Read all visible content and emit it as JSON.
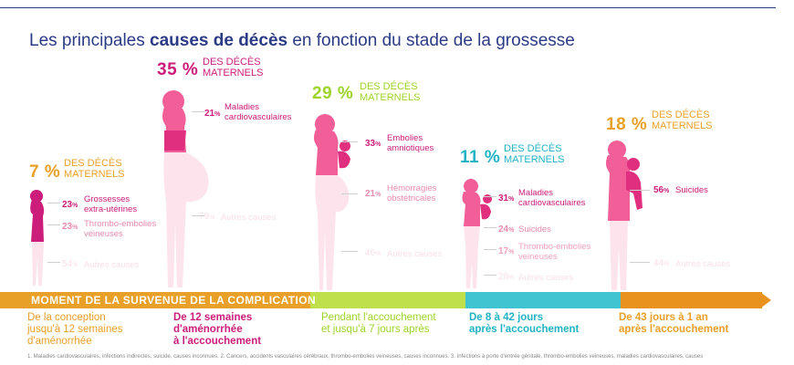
{
  "title": {
    "pre": "Les principales ",
    "bold": "causes de décès",
    "post": " en fonction du stade de la grossesse"
  },
  "colors": {
    "magenta": "#cc1d7a",
    "orange": "#e9a028",
    "cyan": "#21b3c3",
    "lime": "#9ed32a",
    "navy": "#2c3b86",
    "pink": "#f25e97"
  },
  "stages": [
    {
      "pct": "7 %",
      "pct_label": "DES DÉCÈS\nMATERNELS",
      "causes": [
        {
          "v": "23",
          "u": "%",
          "l": "Grossesses\nextra-utérines"
        },
        {
          "v": "23",
          "u": "%",
          "l": "Thrombo-embolies\nveineuses"
        },
        {
          "v": "54",
          "u": "%",
          "l": "Autres causes"
        }
      ]
    },
    {
      "pct": "35 %",
      "pct_label": "DES DÉCÈS\nMATERNELS",
      "causes": [
        {
          "v": "21",
          "u": "%",
          "l": "Maladies\ncardiovasculaires"
        },
        {
          "v": "79",
          "u": "%",
          "l": "Autres causes"
        }
      ]
    },
    {
      "pct": "29 %",
      "pct_label": "DES DÉCÈS\nMATERNELS",
      "causes": [
        {
          "v": "33",
          "u": "%",
          "l": "Embolies\namniotiques"
        },
        {
          "v": "21",
          "u": "%",
          "l": "Hémorragies\nobstétricales"
        },
        {
          "v": "46",
          "u": "%",
          "l": "Autres causes"
        }
      ]
    },
    {
      "pct": "11 %",
      "pct_label": "DES DÉCÈS\nMATERNELS",
      "causes": [
        {
          "v": "31",
          "u": "%",
          "l": "Maladies\ncardiovasculaires"
        },
        {
          "v": "24",
          "u": "%",
          "l": "Suicides"
        },
        {
          "v": "17",
          "u": "%",
          "l": "Thrombo-embolies\nveineuses"
        },
        {
          "v": "28",
          "u": "%",
          "l": "Autres causes"
        }
      ]
    },
    {
      "pct": "18 %",
      "pct_label": "DES DÉCÈS\nMATERNELS",
      "causes": [
        {
          "v": "56",
          "u": "%",
          "l": "Suicides"
        },
        {
          "v": "44",
          "u": "%",
          "l": "Autres causes"
        }
      ]
    }
  ],
  "timeline": {
    "label": "MOMENT DE LA SURVENUE DE LA COMPLICATION"
  },
  "periods": [
    "De la conception\njusqu'à 12 semaines\nd'aménorrhée",
    "De 12 semaines\nd'aménorrhée\nà l'accouchement",
    "Pendant l'accouchement\net jusqu'à 7 jours après",
    "De 8 à 42 jours\naprès l'accouchement",
    "De 43 jours à 1 an\naprès l'accouchement"
  ],
  "footnote": "1. Maladies cardiovasculaires, infections indirectes, suicide, causes inconnues. 2. Cancers, accidents vasculaires cérébraux, thrombo-embolies veineuses, causes inconnues. 3. Infections à porte d'entrée génitale, thrombo-embolies veineuses, maladies cardiovasculaires, causes"
}
